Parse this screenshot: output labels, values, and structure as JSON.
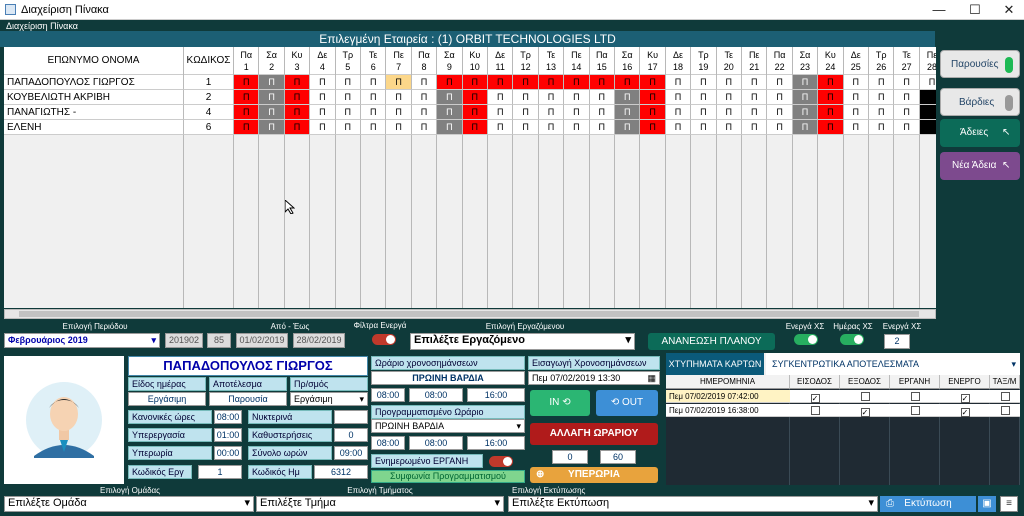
{
  "window": {
    "title": "Διαχείριση Πίνακα",
    "min": "—",
    "max": "☐",
    "close": "✕"
  },
  "group_caption": "Διαχείριση Πίνακα",
  "company_label": "Επιλεγμένη Εταιρεία : (1) ORBIT TECHNOLOGIES LTD",
  "grid": {
    "col_name": "ΕΠΩΝΥΜΟ ΟΝΟΜΑ",
    "col_code": "ΚΩΔΙΚΟΣ",
    "days": [
      {
        "d": "Πα",
        "n": "1"
      },
      {
        "d": "Σα",
        "n": "2"
      },
      {
        "d": "Κυ",
        "n": "3"
      },
      {
        "d": "Δε",
        "n": "4"
      },
      {
        "d": "Τρ",
        "n": "5"
      },
      {
        "d": "Τε",
        "n": "6"
      },
      {
        "d": "Πε",
        "n": "7"
      },
      {
        "d": "Πα",
        "n": "8"
      },
      {
        "d": "Σα",
        "n": "9"
      },
      {
        "d": "Κυ",
        "n": "10"
      },
      {
        "d": "Δε",
        "n": "11"
      },
      {
        "d": "Τρ",
        "n": "12"
      },
      {
        "d": "Τε",
        "n": "13"
      },
      {
        "d": "Πε",
        "n": "14"
      },
      {
        "d": "Πα",
        "n": "15"
      },
      {
        "d": "Σα",
        "n": "16"
      },
      {
        "d": "Κυ",
        "n": "17"
      },
      {
        "d": "Δε",
        "n": "18"
      },
      {
        "d": "Τρ",
        "n": "19"
      },
      {
        "d": "Τε",
        "n": "20"
      },
      {
        "d": "Πε",
        "n": "21"
      },
      {
        "d": "Πα",
        "n": "22"
      },
      {
        "d": "Σα",
        "n": "23"
      },
      {
        "d": "Κυ",
        "n": "24"
      },
      {
        "d": "Δε",
        "n": "25"
      },
      {
        "d": "Τρ",
        "n": "26"
      },
      {
        "d": "Τε",
        "n": "27"
      },
      {
        "d": "Πε",
        "n": "28"
      }
    ],
    "rows": [
      {
        "name": "ΠΑΠΑΔΟΠΟΥΛΟΣ ΓΙΩΡΓΟΣ",
        "code": "1",
        "cells": [
          "R",
          "G",
          "R",
          "W",
          "W",
          "W",
          "Y",
          "W",
          "R",
          "R",
          "R",
          "R",
          "R",
          "R",
          "R",
          "R",
          "R",
          "W",
          "W",
          "W",
          "W",
          "W",
          "G",
          "R",
          "W",
          "W",
          "W",
          "W"
        ]
      },
      {
        "name": "ΚΟΥΒΕΛΙΩΤΗ ΑΚΡΙΒΗ",
        "code": "2",
        "cells": [
          "R",
          "G",
          "R",
          "W",
          "W",
          "W",
          "W",
          "W",
          "G",
          "R",
          "W",
          "W",
          "W",
          "W",
          "W",
          "G",
          "R",
          "W",
          "W",
          "W",
          "W",
          "W",
          "G",
          "R",
          "W",
          "W",
          "W",
          "B"
        ]
      },
      {
        "name": "ΠΑΝΑΓΙΩΤΗΣ -",
        "code": "4",
        "cells": [
          "R",
          "G",
          "R",
          "W",
          "W",
          "W",
          "W",
          "W",
          "G",
          "R",
          "W",
          "W",
          "W",
          "W",
          "W",
          "G",
          "R",
          "W",
          "W",
          "W",
          "W",
          "W",
          "G",
          "R",
          "W",
          "W",
          "W",
          "B"
        ]
      },
      {
        "name": "ΕΛΕΝΗ",
        "code": "6",
        "cells": [
          "R",
          "G",
          "R",
          "W",
          "W",
          "W",
          "W",
          "W",
          "G",
          "R",
          "W",
          "W",
          "W",
          "W",
          "W",
          "G",
          "R",
          "W",
          "W",
          "W",
          "W",
          "W",
          "G",
          "R",
          "W",
          "W",
          "W",
          "B"
        ]
      }
    ],
    "mark": "Π"
  },
  "side": {
    "attend": "Παρουσίες",
    "shifts": "Βάρδιες",
    "leaves": "Άδειες",
    "new_leave": "Νέα Άδεια"
  },
  "filters": {
    "period_label": "Επιλογή Περιόδου",
    "period_value": "Φεβρουάριος 2019",
    "period_code": "201902",
    "period_num": "85",
    "range_label": "Από - Έως",
    "from": "01/02/2019",
    "to": "28/02/2019",
    "active_filter": "Φίλτρα Ενεργά",
    "employee_label": "Επιλογή Εργαζόμενου",
    "employee_value": "Επιλέξτε Εργαζόμενο",
    "refresh": "ΑΝΑΝΕΩΣΗ ΠΛΑΝΟΥ",
    "active_xs": "Ενεργά ΧΣ",
    "day_xs": "Ημέρας ΧΣ",
    "active_xs_count_label": "Ενεργά ΧΣ",
    "active_xs_count": "2"
  },
  "employee": {
    "name": "ΠΑΠΑΔΟΠΟΥΛΟΣ ΓΙΩΡΓΟΣ",
    "day_type_label": "Είδος ημέρας",
    "result_label": "Αποτέλεσμα",
    "plan_label": "Πρ/σμός",
    "day_type": "Εργάσιμη",
    "result": "Παρουσία",
    "plan": "Εργάσιμη",
    "regular_label": "Κανονικές ώρες",
    "regular": "08:00",
    "night_label": "Νυκτερινά",
    "night": "",
    "overtime_label": "Υπερεργασία",
    "overtime": "01:00",
    "late_label": "Καθυστερήσεις",
    "late": "0",
    "extra_label": "Υπερωρία",
    "extra": "00:00",
    "total_label": "Σύνολο ωρών",
    "total": "09:00",
    "ergcode_label": "Κωδικός Εργ",
    "ergcode": "1",
    "daycode_label": "Κωδικός Ημ",
    "daycode": "6312"
  },
  "schedule": {
    "time_label": "Ωράριο χρονοσημάνσεων",
    "shift": "ΠΡΩΙΝΗ ΒΑΡΔΙΑ",
    "t1": "08:00",
    "t2": "08:00",
    "t3": "16:00",
    "planned_label": "Προγραμματισμένο Ωράριο",
    "planned_shift": "ΠΡΩΙΝΗ ΒΑΡΔΙΑ",
    "p1": "08:00",
    "p2": "08:00",
    "p3": "16:00",
    "erganh_label": "Ενημερωμένο ΕΡΓΑΝΗ",
    "agree": "Συμφωνία Προγραμματισμού"
  },
  "entry": {
    "label": "Εισαγωγή Χρονοσημάνσεων",
    "datetime": "Πεμ 07/02/2019 13:30",
    "in": "IN",
    "out": "OUT",
    "change": "ΑΛΛΑΓΗ ΩΡΑΡΙΟΥ",
    "n1": "0",
    "n2": "60",
    "overtime": "ΥΠΕΡΩΡΙΑ"
  },
  "tabs": {
    "cards": "ΧΤΥΠΗΜΑΤΑ ΚΑΡΤΩΝ",
    "summary": "ΣΥΓΚΕΝΤΡΩΤΙΚΑ ΑΠΟΤΕΛΕΣΜΑΤΑ"
  },
  "punches": {
    "headers": [
      "ΗΜΕΡΟΜΗΝΙΑ",
      "ΕΙΣΟΔΟΣ",
      "ΕΞΟΔΟΣ",
      "ΕΡΓΑΝΗ",
      "ΕΝΕΡΓΟ",
      "ΤΑΞ/Μ"
    ],
    "rows": [
      {
        "date": "Πεμ 07/02/2019 07:42:00",
        "in": true,
        "out": false,
        "erg": false,
        "act": true,
        "tax": false
      },
      {
        "date": "Πεμ 07/02/2019 16:38:00",
        "in": false,
        "out": true,
        "erg": false,
        "act": true,
        "tax": false
      }
    ]
  },
  "bottom": {
    "group_label": "Επιλογή Ομάδας",
    "group": "Επιλέξτε Ομάδα",
    "dept_label": "Επιλογή Τμήματος",
    "dept": "Επιλέξτε Τμήμα",
    "print_label": "Επιλογή Εκτύπωσης",
    "print": "Επιλέξτε Εκτύπωση",
    "print_btn": "Εκτύπωση"
  },
  "colors": {
    "R": "#ff0000",
    "G": "#808080",
    "Y": "#fcd78a",
    "W": "#ffffff",
    "B": "#000000"
  }
}
